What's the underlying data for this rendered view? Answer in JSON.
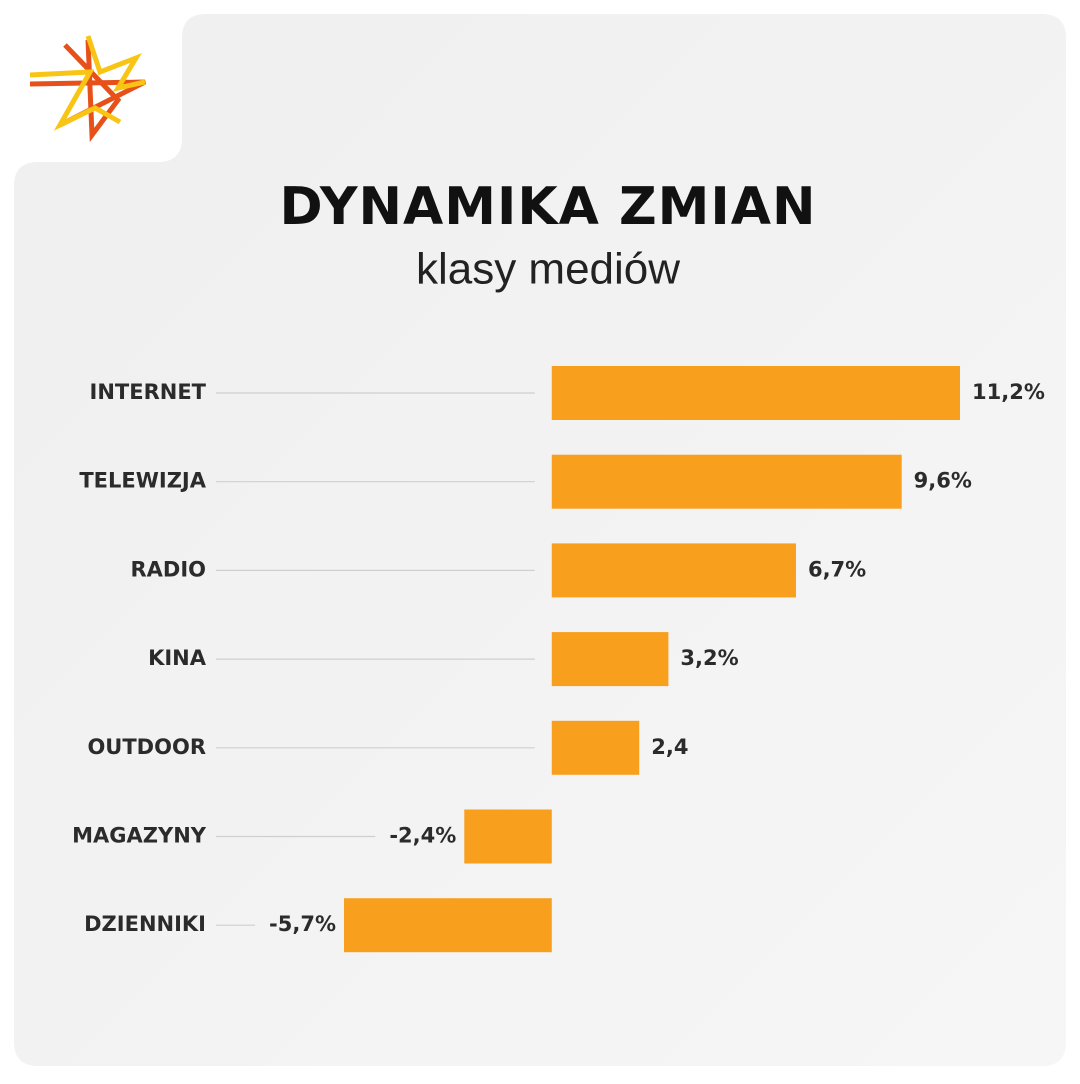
{
  "chart_data": {
    "type": "bar",
    "orientation": "horizontal",
    "title": "DYNAMIKA ZMIAN",
    "subtitle": "klasy mediów",
    "categories": [
      "INTERNET",
      "TELEWIZJA",
      "RADIO",
      "KINA",
      "OUTDOOR",
      "MAGAZYNY",
      "DZIENNIKI"
    ],
    "values": [
      11.2,
      9.6,
      6.7,
      3.2,
      2.4,
      -2.4,
      -5.7
    ],
    "value_labels": [
      "11,2%",
      "9,6%",
      "6,7%",
      "3,2%",
      "2,4",
      "-2,4%",
      "-5,7%"
    ],
    "color": "#f99f1e"
  }
}
